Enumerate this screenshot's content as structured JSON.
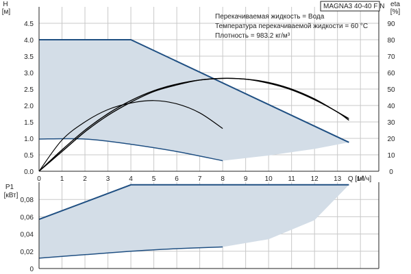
{
  "colors": {
    "envelope_fill": "#d3dde7",
    "envelope_edge": "#1f4f82",
    "duty_curve": "#000000",
    "grid": "#c8c8c8",
    "axis": "#222222"
  },
  "model": "MAGNA3 40-40 F N",
  "info_lines": [
    "Перекачиваемая жидкость = Вода",
    "Температура перекачиваемой жидкости = 60 °C",
    "Плотность = 983.2 кг/м³"
  ],
  "chart_data": [
    {
      "type": "area",
      "name": "head",
      "y_axis_label_lines": [
        "H",
        "[м]"
      ],
      "y2_axis_label_lines": [
        "eta",
        "[%]"
      ],
      "x_axis_label": "Q [м³/ч]",
      "xlim": [
        0,
        14.8
      ],
      "ylim": [
        0,
        5
      ],
      "y2lim": [
        0,
        100
      ],
      "x_ticks": [
        "0",
        "1",
        "2",
        "3",
        "4",
        "5",
        "6",
        "7",
        "8",
        "9",
        "10",
        "11",
        "12",
        "13",
        "14"
      ],
      "y_ticks": [
        "0.0",
        "0.5",
        "1.0",
        "1.5",
        "2.0",
        "2.5",
        "3.0",
        "3.5",
        "4.0",
        "4.5"
      ],
      "y2_ticks": [
        "0",
        "10",
        "20",
        "30",
        "40",
        "50",
        "60",
        "70",
        "80",
        "90"
      ],
      "grid": true,
      "envelope": {
        "upper": [
          [
            0,
            4.0
          ],
          [
            4.0,
            4.0
          ],
          [
            13.5,
            0.88
          ]
        ],
        "lower": [
          [
            0,
            0.98
          ],
          [
            2.0,
            0.98
          ],
          [
            4.0,
            0.82
          ],
          [
            6.0,
            0.6
          ],
          [
            8.0,
            0.32
          ],
          [
            10.0,
            0.48
          ],
          [
            12.0,
            0.68
          ],
          [
            13.5,
            0.88
          ]
        ]
      },
      "efficiency_curves": [
        {
          "points": [
            [
              0,
              0
            ],
            [
              1,
              19
            ],
            [
              2,
              30
            ],
            [
              3,
              37.5
            ],
            [
              4,
              41.5
            ],
            [
              5,
              43
            ],
            [
              6,
              41
            ],
            [
              7,
              35.5
            ],
            [
              8,
              26
            ]
          ]
        },
        {
          "points": [
            [
              0,
              0
            ],
            [
              1,
              12
            ],
            [
              2,
              24
            ],
            [
              3,
              34
            ],
            [
              4,
              42
            ],
            [
              5,
              48.5
            ],
            [
              6,
              52.5
            ],
            [
              7,
              55.5
            ],
            [
              8,
              56.5
            ],
            [
              9,
              56
            ],
            [
              10,
              54
            ],
            [
              11,
              50
            ],
            [
              12,
              44
            ],
            [
              13,
              36
            ],
            [
              13.5,
              32
            ]
          ]
        },
        {
          "points": [
            [
              0,
              0
            ],
            [
              1,
              13
            ],
            [
              2,
              25
            ],
            [
              3,
              35
            ],
            [
              4,
              43
            ],
            [
              5,
              49
            ],
            [
              6,
              53
            ],
            [
              7,
              55.5
            ],
            [
              8,
              56.5
            ],
            [
              9,
              56
            ],
            [
              10,
              53.5
            ],
            [
              11,
              49.5
            ],
            [
              12,
              43.5
            ],
            [
              13,
              36
            ],
            [
              13.5,
              31
            ]
          ]
        }
      ]
    },
    {
      "type": "area",
      "name": "power",
      "y_axis_label_lines": [
        "P1",
        "[кВт]"
      ],
      "xlim": [
        0,
        14.8
      ],
      "ylim": [
        0,
        0.1
      ],
      "y_ticks": [
        "0",
        "0,02",
        "0,04",
        "0,06",
        "0,08"
      ],
      "grid": true,
      "envelope": {
        "upper": [
          [
            0,
            0.057
          ],
          [
            4.0,
            0.097
          ],
          [
            13.5,
            0.097
          ]
        ],
        "lower": [
          [
            0,
            0.012
          ],
          [
            2,
            0.016
          ],
          [
            4,
            0.02
          ],
          [
            6,
            0.023
          ],
          [
            8,
            0.025
          ],
          [
            10,
            0.034
          ],
          [
            12,
            0.056
          ],
          [
            13.5,
            0.097
          ]
        ]
      },
      "edge_curves": [
        {
          "points": [
            [
              0,
              0.012
            ],
            [
              2,
              0.016
            ],
            [
              4,
              0.02
            ],
            [
              6,
              0.023
            ],
            [
              8,
              0.025
            ]
          ]
        }
      ]
    }
  ]
}
